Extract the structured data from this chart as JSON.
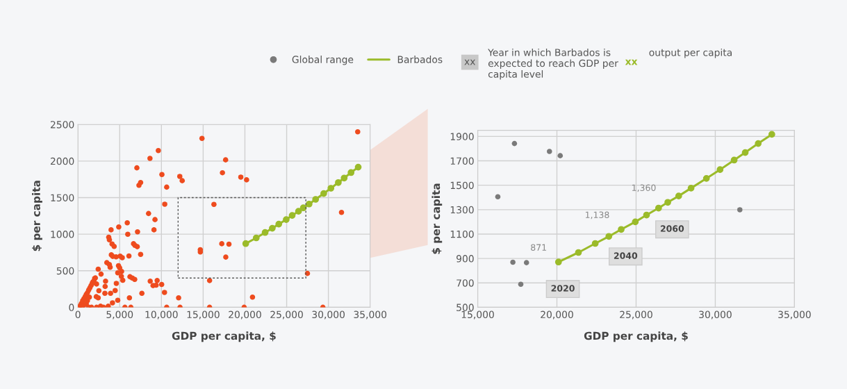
{
  "chart_data": [
    {
      "type": "scatter",
      "xlabel": "GDP per capita, $",
      "ylabel": "$ per capita",
      "xlim": [
        0,
        35000
      ],
      "ylim": [
        0,
        2500
      ],
      "xticks": [
        0,
        {
          "value": 5000,
          "label": "5,000"
        },
        {
          "value": 10000,
          "label": "10,000"
        },
        {
          "value": 15000,
          "label": "15,000"
        },
        {
          "value": 20000,
          "label": "20,000"
        },
        {
          "value": 25000,
          "label": "25,000"
        },
        {
          "value": 30000,
          "label": "30,000"
        },
        {
          "value": 35000,
          "label": "35,000"
        }
      ],
      "yticks": [
        0,
        500,
        1000,
        1500,
        2000,
        2500
      ],
      "grid": true,
      "marker": "circle",
      "series": [
        {
          "color": "#ee4b1e",
          "x": [
            14860,
            9630,
            8630,
            7060,
            10060,
            7310,
            7510,
            10630,
            12200,
            12490,
            17690,
            17310,
            19510,
            20200,
            33510,
            31570,
            27490,
            16290,
            10400,
            8460,
            9230,
            9110,
            5910,
            4890,
            5970,
            3970,
            3690,
            3770,
            4090,
            4340,
            7140,
            6660,
            6830,
            7110,
            7510,
            6110,
            4000,
            4170,
            4570,
            5060,
            5310,
            4860,
            5000,
            5230,
            4770,
            5200,
            5370,
            4600,
            3460,
            3770,
            3860,
            2430,
            2770,
            2000,
            1800,
            2230,
            2510,
            3310,
            3260,
            3230,
            3910,
            4460,
            4770,
            4140,
            6230,
            6510,
            6800,
            7660,
            6170,
            5630,
            6340,
            8660,
            9000,
            9490,
            9370,
            10030,
            10370,
            10630,
            12060,
            12230,
            14660,
            14660,
            17230,
            18090,
            17710,
            15770,
            15770,
            19910,
            20910,
            29340,
            140,
            290,
            430,
            570,
            710,
            860,
            1000,
            1140,
            1290,
            1430,
            1570,
            1710,
            1910,
            2090,
            490,
            710,
            1000,
            1290,
            1630,
            2230,
            2710,
            3060,
            3630,
            1140,
            1370,
            2200,
            2430
          ],
          "values": [
            2309,
            2143,
            2037,
            1907,
            1816,
            1668,
            1707,
            1643,
            1789,
            1731,
            2016,
            1840,
            1780,
            1743,
            2400,
            1298,
            463,
            1407,
            1410,
            1283,
            1199,
            1059,
            1156,
            1099,
            999,
            1059,
            959,
            923,
            866,
            832,
            1032,
            869,
            847,
            829,
            723,
            702,
            717,
            696,
            690,
            699,
            678,
            569,
            539,
            490,
            472,
            424,
            369,
            327,
            611,
            584,
            548,
            521,
            454,
            393,
            348,
            318,
            227,
            357,
            285,
            191,
            191,
            230,
            97,
            61,
            418,
            400,
            381,
            191,
            130,
            0,
            0,
            357,
            297,
            366,
            303,
            312,
            203,
            0,
            130,
            0,
            787,
            757,
            869,
            863,
            687,
            366,
            0,
            0,
            139,
            0,
            0,
            24,
            54,
            91,
            115,
            145,
            176,
            200,
            236,
            266,
            297,
            327,
            357,
            402,
            9,
            30,
            48,
            0,
            0,
            0,
            15,
            0,
            15,
            91,
            139,
            145,
            130
          ]
        },
        {
          "type": "line",
          "color": "#9bbb2a",
          "x": [
            20100,
            21360,
            22420,
            23280,
            24060,
            24950,
            25660,
            26420,
            27000,
            27690,
            28470,
            29440,
            30300,
            31190,
            31890,
            32710,
            33570
          ],
          "values": [
            871,
            949,
            1023,
            1081,
            1138,
            1200,
            1256,
            1313,
            1360,
            1412,
            1476,
            1556,
            1628,
            1706,
            1768,
            1842,
            1917
          ]
        }
      ]
    },
    {
      "type": "scatter",
      "xlabel": "GDP per capita, $",
      "ylabel": "$ per capita",
      "xlim": [
        15000,
        35000
      ],
      "ylim": [
        500,
        1950
      ],
      "xticks": [
        {
          "value": 15000,
          "label": "15,000"
        },
        {
          "value": 20000,
          "label": "20,000"
        },
        {
          "value": 25000,
          "label": "25,000"
        },
        {
          "value": 30000,
          "label": "30,000"
        },
        {
          "value": 35000,
          "label": "35,000"
        }
      ],
      "yticks": [
        500,
        700,
        900,
        1100,
        1300,
        1500,
        1700,
        1900
      ],
      "grid": true,
      "marker": "circle",
      "legend": "top",
      "series": [
        {
          "name": "Global range",
          "color": "#7a7a7a",
          "x": [
            16270,
            17320,
            19530,
            20210,
            17220,
            18080,
            17720,
            31550
          ],
          "values": [
            1406,
            1842,
            1777,
            1742,
            869,
            866,
            689,
            1299
          ]
        },
        {
          "type": "line",
          "name": "Barbados",
          "color": "#9bbb2a",
          "x": [
            20100,
            21360,
            22420,
            23280,
            24060,
            24950,
            25660,
            26420,
            27000,
            27690,
            28470,
            29440,
            30300,
            31190,
            31890,
            32710,
            33570
          ],
          "values": [
            871,
            949,
            1023,
            1081,
            1138,
            1200,
            1256,
            1313,
            1360,
            1412,
            1476,
            1556,
            1628,
            1706,
            1768,
            1842,
            1917
          ],
          "value_labels": [
            "871",
            null,
            null,
            null,
            "1,138",
            null,
            null,
            null,
            "1,360",
            null,
            null,
            null,
            null,
            null,
            null,
            null,
            null
          ]
        }
      ],
      "annotations": [
        "xx",
        "Year in which Barbados is expected to reach GDP per capita level",
        "xx",
        "output per capita",
        {
          "text": "2020",
          "x": 20100,
          "y": 871
        },
        {
          "text": "2040",
          "x": 24060,
          "y": 1138
        },
        {
          "text": "2060",
          "x": 27000,
          "y": 1360
        }
      ]
    }
  ]
}
